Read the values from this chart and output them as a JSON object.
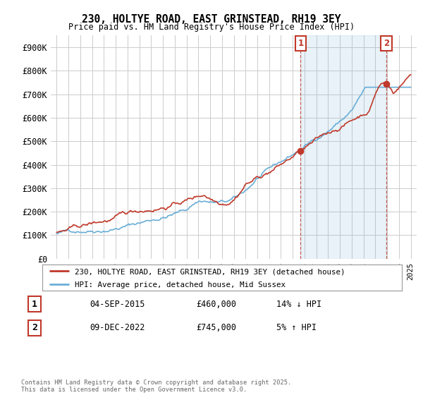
{
  "title": "230, HOLTYE ROAD, EAST GRINSTEAD, RH19 3EY",
  "subtitle": "Price paid vs. HM Land Registry's House Price Index (HPI)",
  "ylim": [
    0,
    950000
  ],
  "yticks": [
    0,
    100000,
    200000,
    300000,
    400000,
    500000,
    600000,
    700000,
    800000,
    900000
  ],
  "ytick_labels": [
    "£0",
    "£100K",
    "£200K",
    "£300K",
    "£400K",
    "£500K",
    "£600K",
    "£700K",
    "£800K",
    "£900K"
  ],
  "hpi_color": "#6aaed6",
  "hpi_fill_color": "#d6eaf8",
  "price_color": "#c0392b",
  "vline_color": "#c0392b",
  "annotation_box_color": "#c0392b",
  "background_color": "#ffffff",
  "grid_color": "#cccccc",
  "t1_x": 2015.67,
  "t2_x": 2022.92,
  "t1_price": 460000,
  "t2_price": 745000,
  "legend_line1": "230, HOLTYE ROAD, EAST GRINSTEAD, RH19 3EY (detached house)",
  "legend_line2": "HPI: Average price, detached house, Mid Sussex",
  "footer": "Contains HM Land Registry data © Crown copyright and database right 2025.\nThis data is licensed under the Open Government Licence v3.0.",
  "table_row1": [
    "1",
    "04-SEP-2015",
    "£460,000",
    "14% ↓ HPI"
  ],
  "table_row2": [
    "2",
    "09-DEC-2022",
    "£745,000",
    "5% ↑ HPI"
  ],
  "xmin": 1994.5,
  "xmax": 2025.5
}
